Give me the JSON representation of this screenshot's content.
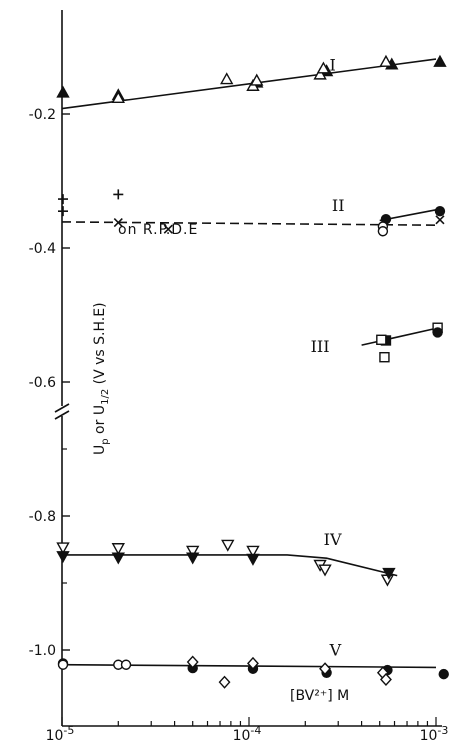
{
  "chart_data": {
    "type": "scatter",
    "title": "",
    "xlabel": "[BV²⁺] M",
    "ylabel_parts": [
      "U",
      "p",
      " or ",
      "U",
      "1/2",
      " (V vs S.H.E)"
    ],
    "x_scale": "log",
    "xlim": [
      1e-05,
      0.001
    ],
    "x_ticks": [
      {
        "value": 1e-05,
        "mant": "10",
        "exp": "-5"
      },
      {
        "value": 0.0001,
        "mant": "10",
        "exp": "-4"
      },
      {
        "value": 0.001,
        "mant": "10",
        "exp": "-3"
      }
    ],
    "y_ticks": [
      {
        "value": -0.2,
        "label": "-0.2"
      },
      {
        "value": -0.4,
        "label": "-0.4"
      },
      {
        "value": -0.6,
        "label": "-0.6"
      },
      {
        "value": -0.8,
        "label": "-0.8"
      },
      {
        "value": -1.0,
        "label": "-1.0"
      }
    ],
    "axis_break": "//",
    "annotation": "on   R.P.D.E",
    "grid": false,
    "curves": [
      {
        "label": "I",
        "style": "solid",
        "points": [
          [
            1e-05,
            -0.192
          ],
          [
            0.001,
            -0.118
          ]
        ]
      },
      {
        "label": "II",
        "style": "dashed",
        "points": [
          [
            1e-05,
            -0.361
          ],
          [
            0.001,
            -0.366
          ]
        ]
      },
      {
        "label": "II",
        "style": "solid",
        "points": [
          [
            0.0005,
            -0.359
          ],
          [
            0.001,
            -0.343
          ]
        ]
      },
      {
        "label": "III",
        "style": "solid",
        "points": [
          [
            0.0004,
            -0.545
          ],
          [
            0.001,
            -0.52
          ]
        ]
      },
      {
        "label": "IV",
        "style": "solid",
        "points": [
          [
            1e-05,
            -0.858
          ],
          [
            0.00016,
            -0.858
          ],
          [
            0.00026,
            -0.863
          ],
          [
            0.00062,
            -0.889
          ]
        ]
      },
      {
        "label": "V",
        "style": "solid",
        "points": [
          [
            1e-05,
            -1.022
          ],
          [
            0.001,
            -1.026
          ]
        ]
      }
    ],
    "curve_labels": [
      {
        "text": "I",
        "x": 0.00028,
        "y": -0.135
      },
      {
        "text": "II",
        "x": 0.0003,
        "y": -0.345
      },
      {
        "text": "III",
        "x": 0.00024,
        "y": -0.555
      },
      {
        "text": "IV",
        "x": 0.00028,
        "y": -0.843
      },
      {
        "text": "V",
        "x": 0.00029,
        "y": -1.008
      }
    ],
    "series": [
      {
        "marker": "filled-triangle",
        "points": [
          [
            1e-05,
            -0.168
          ],
          [
            2e-05,
            -0.172
          ],
          [
            0.00011,
            -0.153
          ],
          [
            0.00026,
            -0.136
          ],
          [
            0.00058,
            -0.126
          ],
          [
            0.00105,
            -0.122
          ]
        ]
      },
      {
        "marker": "open-triangle",
        "points": [
          [
            2e-05,
            -0.176
          ],
          [
            7.6e-05,
            -0.148
          ],
          [
            0.000105,
            -0.158
          ],
          [
            0.00011,
            -0.15
          ],
          [
            0.00024,
            -0.141
          ],
          [
            0.00025,
            -0.132
          ],
          [
            0.00054,
            -0.122
          ]
        ]
      },
      {
        "marker": "plus",
        "points": [
          [
            1e-05,
            -0.327
          ],
          [
            2e-05,
            -0.32
          ],
          [
            1e-05,
            -0.345
          ]
        ]
      },
      {
        "marker": "cross",
        "points": [
          [
            2e-05,
            -0.362
          ],
          [
            3.7e-05,
            -0.372
          ],
          [
            0.00052,
            -0.37
          ],
          [
            0.00105,
            -0.358
          ]
        ]
      },
      {
        "marker": "filled-circle",
        "points": [
          [
            0.00054,
            -0.357
          ],
          [
            0.00105,
            -0.345
          ]
        ]
      },
      {
        "marker": "open-circle",
        "points": [
          [
            0.00052,
            -0.368
          ],
          [
            0.00052,
            -0.375
          ]
        ]
      },
      {
        "marker": "filled-square",
        "points": [
          [
            0.00054,
            -0.538
          ]
        ]
      },
      {
        "marker": "open-square",
        "points": [
          [
            0.00051,
            -0.537
          ],
          [
            0.00053,
            -0.563
          ],
          [
            0.00102,
            -0.519
          ]
        ]
      },
      {
        "marker": "filled-circle",
        "points": [
          [
            0.00102,
            -0.526
          ]
        ]
      },
      {
        "marker": "open-triangle-down",
        "points": [
          [
            1e-05,
            -0.847
          ],
          [
            2e-05,
            -0.848
          ],
          [
            5e-05,
            -0.852
          ],
          [
            7.7e-05,
            -0.843
          ],
          [
            0.000105,
            -0.852
          ],
          [
            0.00024,
            -0.873
          ],
          [
            0.000255,
            -0.88
          ],
          [
            0.00055,
            -0.895
          ]
        ]
      },
      {
        "marker": "filled-triangle-down",
        "points": [
          [
            1e-05,
            -0.86
          ],
          [
            2e-05,
            -0.862
          ],
          [
            5e-05,
            -0.862
          ],
          [
            0.000105,
            -0.864
          ],
          [
            0.00056,
            -0.885
          ]
        ]
      },
      {
        "marker": "filled-circle",
        "points": [
          [
            1e-05,
            -1.02
          ],
          [
            5e-05,
            -1.027
          ],
          [
            0.000105,
            -1.028
          ],
          [
            0.00026,
            -1.034
          ],
          [
            0.00055,
            -1.03
          ],
          [
            0.0011,
            -1.036
          ]
        ]
      },
      {
        "marker": "open-circle",
        "points": [
          [
            1e-05,
            -1.022
          ],
          [
            2e-05,
            -1.022
          ],
          [
            2.2e-05,
            -1.022
          ]
        ]
      },
      {
        "marker": "open-diamond",
        "points": [
          [
            5e-05,
            -1.018
          ],
          [
            7.4e-05,
            -1.048
          ],
          [
            0.000105,
            -1.02
          ],
          [
            0.000255,
            -1.028
          ],
          [
            0.00052,
            -1.034
          ],
          [
            0.00054,
            -1.044
          ]
        ]
      }
    ]
  }
}
